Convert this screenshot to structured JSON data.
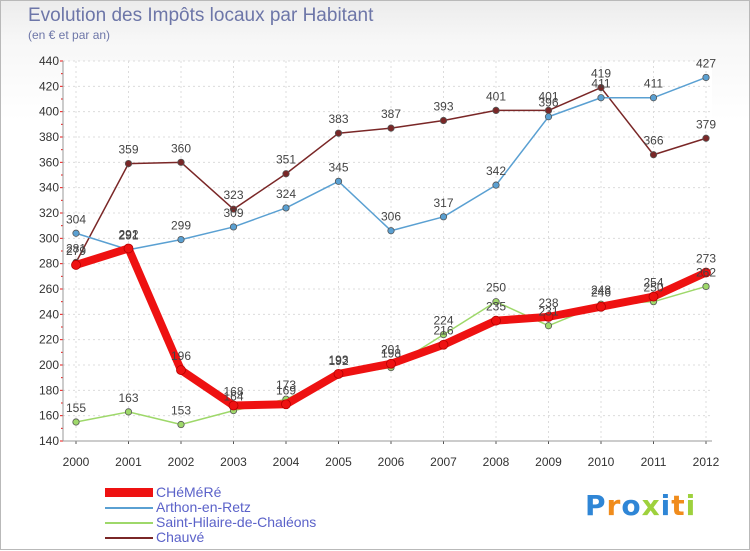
{
  "chart_data": {
    "type": "line",
    "title": "Evolution des Impôts locaux par Habitant",
    "subtitle": "(en € et par an)",
    "xlabel": "",
    "ylabel": "",
    "x": [
      "2000",
      "2001",
      "2002",
      "2003",
      "2004",
      "2005",
      "2006",
      "2007",
      "2008",
      "2009",
      "2010",
      "2011",
      "2012"
    ],
    "ylim": [
      140,
      440
    ],
    "yticks": [
      140,
      160,
      180,
      200,
      220,
      240,
      260,
      280,
      300,
      320,
      340,
      360,
      380,
      400,
      420,
      440
    ],
    "grid": true,
    "legend_position": "bottom-left",
    "series": [
      {
        "name": "CHéMéRé",
        "color": "#ee1111",
        "values": [
          279,
          292,
          196,
          168,
          169,
          193,
          201,
          216,
          235,
          238,
          246,
          254,
          273
        ]
      },
      {
        "name": "Arthon-en-Retz",
        "color": "#5aa0d2",
        "values": [
          304,
          291,
          299,
          309,
          324,
          345,
          306,
          317,
          342,
          396,
          411,
          411,
          427
        ]
      },
      {
        "name": "Saint-Hilaire-de-Chaléons",
        "color": "#9ed86a",
        "values": [
          155,
          163,
          153,
          164,
          173,
          192,
          198,
          224,
          250,
          231,
          248,
          250,
          262
        ]
      },
      {
        "name": "Chauvé",
        "color": "#7a2727",
        "values": [
          281,
          359,
          360,
          323,
          351,
          383,
          387,
          393,
          401,
          401,
          419,
          366,
          379
        ]
      }
    ]
  },
  "brand": {
    "text": "Proxiti",
    "letter_colors": [
      "#2f86d6",
      "#f08c1c",
      "#2f86d6",
      "#9ed13d",
      "#2f86d6",
      "#f08c1c",
      "#9ed13d"
    ]
  }
}
